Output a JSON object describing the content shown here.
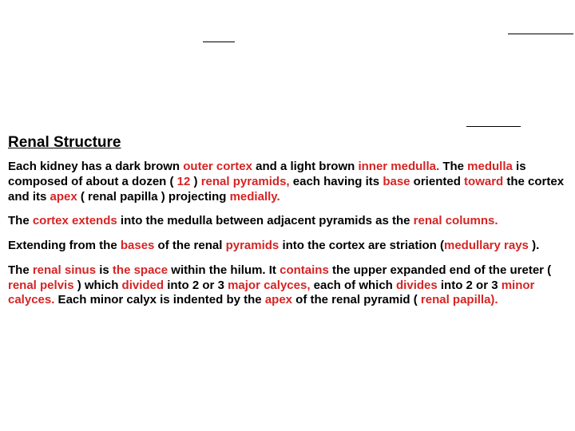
{
  "heading": "Renal Structure",
  "p1": {
    "t1": "Each kidney has a dark brown ",
    "r1": "outer cortex",
    "t2": " and a light brown ",
    "r2": "inner medulla.",
    "t3": " The ",
    "r3": "medulla",
    "t4": " is composed of about a dozen ( ",
    "r4": "12",
    "t5": " ) ",
    "r5": "renal pyramids,",
    "t6": " each having its ",
    "r6": "base",
    "t7": " oriented ",
    "r7": "toward",
    "t8": " the cortex and its ",
    "r8": "apex",
    "t9": " ( renal papilla ) projecting ",
    "r9": "medially."
  },
  "p2": {
    "t1": "The ",
    "r1": "cortex extends",
    "t2": " into the medulla between adjacent pyramids as the ",
    "r2": "renal columns."
  },
  "p3": {
    "t1": "Extending from the ",
    "r1": "bases",
    "t2": " of the renal ",
    "r2": "pyramids",
    "t3": " into the cortex are striation (",
    "r3": "medullary rays",
    "t4": " )."
  },
  "p4": {
    "t1": "The ",
    "r1": "renal sinus",
    "t2": " is ",
    "r2": "the space",
    "t3": " within the hilum. It ",
    "r3": "contains",
    "t4": " the upper expanded end of the ureter ( ",
    "r4": "renal pelvis",
    "t5": " ) which ",
    "r5": "divided",
    "t6": " into 2 or 3 ",
    "r6": "major calyces,",
    "t7": " each of which ",
    "r7": "divides",
    "t8": " into 2 or 3 ",
    "r8": "minor calyces.",
    "t9": " Each minor calyx is indented by the ",
    "r9": "apex",
    "t10": " of the renal pyramid ( ",
    "r10": "renal papilla)."
  }
}
